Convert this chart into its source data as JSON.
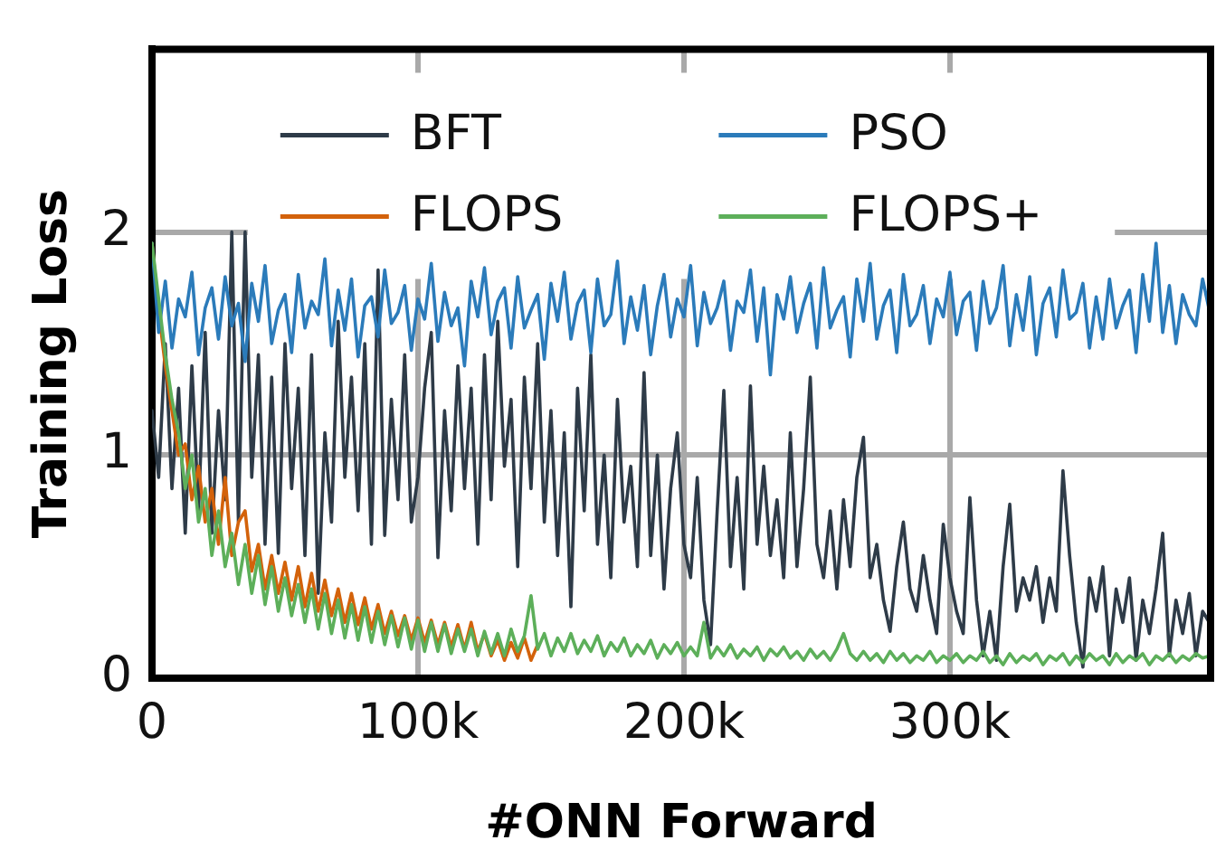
{
  "chart_data": {
    "type": "line",
    "xlabel": "#ONN Forward",
    "ylabel": "Training Loss",
    "xlim": [
      0,
      398000
    ],
    "xticks": [
      0,
      {
        "value": 100000,
        "label": "100k"
      },
      {
        "value": 200000,
        "label": "200k"
      },
      {
        "value": 300000,
        "label": "300k"
      }
    ],
    "ylim": [
      0,
      2.82
    ],
    "yticks": [
      0,
      1,
      2
    ],
    "grid": true,
    "legend": "top",
    "x": [
      0,
      2500,
      5000,
      7500,
      10000,
      12500,
      15000,
      17500,
      20000,
      22500,
      25000,
      27500,
      30000,
      32500,
      35000,
      37500,
      40000,
      42500,
      45000,
      47500,
      50000,
      52500,
      55000,
      57500,
      60000,
      62500,
      65000,
      67500,
      70000,
      72500,
      75000,
      77500,
      80000,
      82500,
      85000,
      87500,
      90000,
      92500,
      95000,
      97500,
      100000,
      102500,
      105000,
      107500,
      110000,
      112500,
      115000,
      117500,
      120000,
      122500,
      125000,
      127500,
      130000,
      132500,
      135000,
      137500,
      140000,
      142500,
      145000,
      147500,
      150000,
      152500,
      155000,
      157500,
      160000,
      162500,
      165000,
      167500,
      170000,
      172500,
      175000,
      177500,
      180000,
      182500,
      185000,
      187500,
      190000,
      192500,
      195000,
      197500,
      200000,
      202500,
      205000,
      207500,
      210000,
      212500,
      215000,
      217500,
      220000,
      222500,
      225000,
      227500,
      230000,
      232500,
      235000,
      237500,
      240000,
      242500,
      245000,
      247500,
      250000,
      252500,
      255000,
      257500,
      260000,
      262500,
      265000,
      267500,
      270000,
      272500,
      275000,
      277500,
      280000,
      282500,
      285000,
      287500,
      290000,
      292500,
      295000,
      297500,
      300000,
      302500,
      305000,
      307500,
      310000,
      312500,
      315000,
      317500,
      320000,
      322500,
      325000,
      327500,
      330000,
      332500,
      335000,
      337500,
      340000,
      342500,
      345000,
      347500,
      350000,
      352500,
      355000,
      357500,
      360000,
      362500,
      365000,
      367500,
      370000,
      372500,
      375000,
      377500,
      380000,
      382500,
      385000,
      387500,
      390000,
      392500,
      395000,
      397500
    ],
    "series": [
      {
        "name": "BFT",
        "color": "#2e3b48",
        "values": [
          1.2,
          0.9,
          1.5,
          0.85,
          1.3,
          0.65,
          1.4,
          0.75,
          1.55,
          0.65,
          1.2,
          0.8,
          2.0,
          0.7,
          2.0,
          0.9,
          1.45,
          0.6,
          1.35,
          0.56,
          1.5,
          0.85,
          1.3,
          0.55,
          1.45,
          0.38,
          1.1,
          0.7,
          1.6,
          0.9,
          1.35,
          0.75,
          1.5,
          0.6,
          1.83,
          0.64,
          1.25,
          0.8,
          1.45,
          0.7,
          0.9,
          1.3,
          1.55,
          0.54,
          1.2,
          0.75,
          1.4,
          0.85,
          1.3,
          0.6,
          1.45,
          0.8,
          1.6,
          0.95,
          1.25,
          0.5,
          1.35,
          0.85,
          1.5,
          0.7,
          1.2,
          0.55,
          1.1,
          0.32,
          1.3,
          0.75,
          1.45,
          0.6,
          1.0,
          0.45,
          1.25,
          0.7,
          0.95,
          0.5,
          1.37,
          0.55,
          1.0,
          0.4,
          0.85,
          1.1,
          0.6,
          0.45,
          0.9,
          0.35,
          0.15,
          0.75,
          1.29,
          0.5,
          0.9,
          0.4,
          1.31,
          0.6,
          0.95,
          0.55,
          0.8,
          0.45,
          1.1,
          0.5,
          0.85,
          1.35,
          0.6,
          0.45,
          0.75,
          0.4,
          0.8,
          0.5,
          0.9,
          1.08,
          0.45,
          0.6,
          0.35,
          0.21,
          0.5,
          0.7,
          0.4,
          0.3,
          0.55,
          0.35,
          0.2,
          0.69,
          0.45,
          0.3,
          0.2,
          0.81,
          0.35,
          0.1,
          0.3,
          0.08,
          0.5,
          0.78,
          0.3,
          0.45,
          0.35,
          0.5,
          0.25,
          0.45,
          0.3,
          0.93,
          0.55,
          0.25,
          0.05,
          0.45,
          0.3,
          0.5,
          0.1,
          0.4,
          0.25,
          0.45,
          0.08,
          0.35,
          0.2,
          0.4,
          0.65,
          0.1,
          0.35,
          0.2,
          0.38,
          0.1,
          0.3,
          0.25
        ]
      },
      {
        "name": "FLOPS",
        "color": "#d3620b",
        "x": [
          0,
          2500,
          5000,
          7500,
          10000,
          12500,
          15000,
          17500,
          20000,
          22500,
          25000,
          27500,
          30000,
          32500,
          35000,
          37500,
          40000,
          42500,
          45000,
          47500,
          50000,
          52500,
          55000,
          57500,
          60000,
          62500,
          65000,
          67500,
          70000,
          72500,
          75000,
          77500,
          80000,
          82500,
          85000,
          87500,
          90000,
          92500,
          95000,
          97500,
          100000,
          102500,
          105000,
          107500,
          110000,
          112500,
          115000,
          117500,
          120000,
          122500,
          125000,
          127500,
          130000,
          132500,
          135000,
          137500,
          140000,
          142500,
          145000
        ],
        "values": [
          1.95,
          1.65,
          1.4,
          1.2,
          1.0,
          1.05,
          0.8,
          0.95,
          0.7,
          0.85,
          0.6,
          0.9,
          0.55,
          0.7,
          0.75,
          0.48,
          0.6,
          0.4,
          0.55,
          0.38,
          0.52,
          0.35,
          0.5,
          0.32,
          0.47,
          0.3,
          0.44,
          0.28,
          0.4,
          0.25,
          0.38,
          0.24,
          0.36,
          0.22,
          0.33,
          0.2,
          0.3,
          0.19,
          0.28,
          0.17,
          0.27,
          0.16,
          0.26,
          0.15,
          0.25,
          0.14,
          0.24,
          0.13,
          0.25,
          0.12,
          0.2,
          0.1,
          0.17,
          0.08,
          0.16,
          0.09,
          0.18,
          0.08,
          0.15
        ]
      },
      {
        "name": "PSO",
        "color": "#2b7bba",
        "values": [
          1.95,
          1.55,
          1.78,
          1.48,
          1.7,
          1.62,
          1.82,
          1.45,
          1.66,
          1.75,
          1.52,
          1.8,
          1.58,
          1.68,
          1.42,
          1.77,
          1.6,
          1.85,
          1.5,
          1.65,
          1.72,
          1.46,
          1.81,
          1.57,
          1.69,
          1.63,
          1.88,
          1.49,
          1.74,
          1.56,
          1.79,
          1.44,
          1.67,
          1.71,
          1.53,
          1.83,
          1.59,
          1.64,
          1.76,
          1.47,
          1.7,
          1.61,
          1.86,
          1.51,
          1.73,
          1.58,
          1.66,
          1.4,
          1.78,
          1.62,
          1.84,
          1.54,
          1.69,
          1.75,
          1.48,
          1.8,
          1.57,
          1.65,
          1.72,
          1.43,
          1.77,
          1.6,
          1.82,
          1.52,
          1.68,
          1.74,
          1.46,
          1.79,
          1.58,
          1.63,
          1.87,
          1.5,
          1.71,
          1.56,
          1.76,
          1.45,
          1.67,
          1.81,
          1.53,
          1.7,
          1.62,
          1.85,
          1.49,
          1.73,
          1.59,
          1.66,
          1.78,
          1.47,
          1.69,
          1.64,
          1.83,
          1.51,
          1.75,
          1.36,
          1.72,
          1.61,
          1.8,
          1.55,
          1.68,
          1.77,
          1.48,
          1.84,
          1.57,
          1.65,
          1.71,
          1.44,
          1.79,
          1.6,
          1.86,
          1.52,
          1.67,
          1.74,
          1.46,
          1.81,
          1.58,
          1.63,
          1.76,
          1.5,
          1.7,
          1.62,
          1.82,
          1.54,
          1.69,
          1.73,
          1.47,
          1.78,
          1.59,
          1.66,
          1.85,
          1.49,
          1.72,
          1.56,
          1.8,
          1.45,
          1.68,
          1.75,
          1.53,
          1.83,
          1.61,
          1.64,
          1.77,
          1.48,
          1.71,
          1.52,
          1.79,
          1.57,
          1.67,
          1.74,
          1.46,
          1.81,
          1.6,
          1.95,
          1.55,
          1.76,
          1.5,
          1.72,
          1.63,
          1.58,
          1.79,
          1.65
        ]
      },
      {
        "name": "FLOPS+",
        "color": "#5daf5a",
        "values": [
          1.95,
          1.7,
          1.45,
          1.25,
          1.1,
          0.85,
          1.0,
          0.7,
          0.85,
          0.55,
          0.75,
          0.5,
          0.65,
          0.42,
          0.6,
          0.38,
          0.55,
          0.33,
          0.5,
          0.3,
          0.45,
          0.28,
          0.42,
          0.25,
          0.4,
          0.22,
          0.38,
          0.2,
          0.35,
          0.18,
          0.33,
          0.17,
          0.32,
          0.16,
          0.3,
          0.15,
          0.28,
          0.14,
          0.27,
          0.13,
          0.26,
          0.12,
          0.25,
          0.12,
          0.24,
          0.11,
          0.22,
          0.12,
          0.22,
          0.1,
          0.21,
          0.11,
          0.2,
          0.1,
          0.22,
          0.12,
          0.19,
          0.37,
          0.13,
          0.2,
          0.1,
          0.18,
          0.12,
          0.2,
          0.11,
          0.17,
          0.12,
          0.19,
          0.1,
          0.16,
          0.12,
          0.18,
          0.1,
          0.15,
          0.11,
          0.17,
          0.09,
          0.15,
          0.11,
          0.16,
          0.1,
          0.14,
          0.1,
          0.25,
          0.09,
          0.14,
          0.1,
          0.15,
          0.09,
          0.13,
          0.1,
          0.14,
          0.08,
          0.13,
          0.1,
          0.14,
          0.09,
          0.12,
          0.08,
          0.13,
          0.09,
          0.12,
          0.08,
          0.13,
          0.2,
          0.11,
          0.08,
          0.12,
          0.08,
          0.11,
          0.07,
          0.12,
          0.08,
          0.11,
          0.07,
          0.1,
          0.08,
          0.12,
          0.07,
          0.1,
          0.08,
          0.11,
          0.07,
          0.1,
          0.08,
          0.12,
          0.07,
          0.1,
          0.06,
          0.11,
          0.07,
          0.1,
          0.08,
          0.11,
          0.06,
          0.1,
          0.08,
          0.11,
          0.06,
          0.1,
          0.07,
          0.11,
          0.08,
          0.1,
          0.06,
          0.11,
          0.07,
          0.1,
          0.08,
          0.11,
          0.06,
          0.1,
          0.08,
          0.11,
          0.07,
          0.1,
          0.08,
          0.11,
          0.09,
          0.1
        ]
      }
    ]
  }
}
